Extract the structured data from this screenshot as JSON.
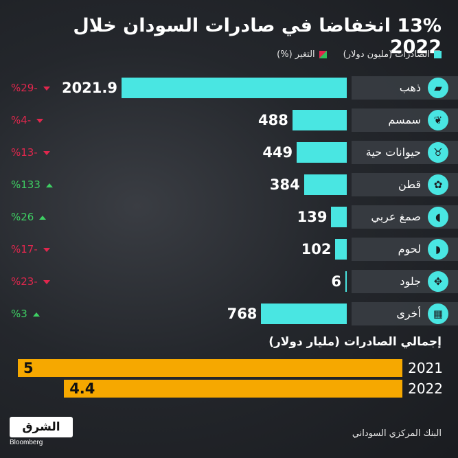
{
  "title": "13% انخفاضا في صادرات السودان خلال 2022",
  "legend": {
    "exports_label": "الصادرات (مليون دولار)",
    "change_label": "التغير (%)"
  },
  "colors": {
    "bar": "#49e6e2",
    "down": "#e0274d",
    "up": "#3ecf63",
    "total": "#f6a800"
  },
  "chart_data": [
    {
      "type": "bar",
      "orientation": "horizontal",
      "categories": [
        "ذهب",
        "سمسم",
        "حيوانات حية",
        "قطن",
        "صمغ عربي",
        "لحوم",
        "جلود",
        "أخرى"
      ],
      "icons": [
        "gold-icon",
        "sesame-icon",
        "livestock-icon",
        "cotton-icon",
        "gum-arabic-icon",
        "meat-icon",
        "leather-icon",
        "other-icon"
      ],
      "values": [
        2021.9,
        488,
        449,
        384,
        139,
        102,
        6,
        768
      ],
      "value_labels": [
        "2021.9",
        "488",
        "449",
        "384",
        "139",
        "102",
        "6",
        "768"
      ],
      "change": [
        -29,
        -4,
        -13,
        133,
        26,
        -17,
        -23,
        3
      ],
      "change_labels": [
        "%29-",
        "%4-",
        "%13-",
        "%133",
        "%26",
        "%17-",
        "%23-",
        "%3"
      ],
      "xlim": [
        0,
        2021.9
      ]
    },
    {
      "type": "bar",
      "orientation": "horizontal",
      "title": "إجمالي الصادرات (مليار دولار)",
      "categories": [
        "2021",
        "2022"
      ],
      "values": [
        5,
        4.4
      ],
      "value_labels": [
        "5",
        "4.4"
      ],
      "xlim": [
        0,
        5
      ]
    }
  ],
  "source": "البنك المركزي السوداني",
  "logo": {
    "text": "الشرق",
    "sub": "Bloomberg"
  }
}
